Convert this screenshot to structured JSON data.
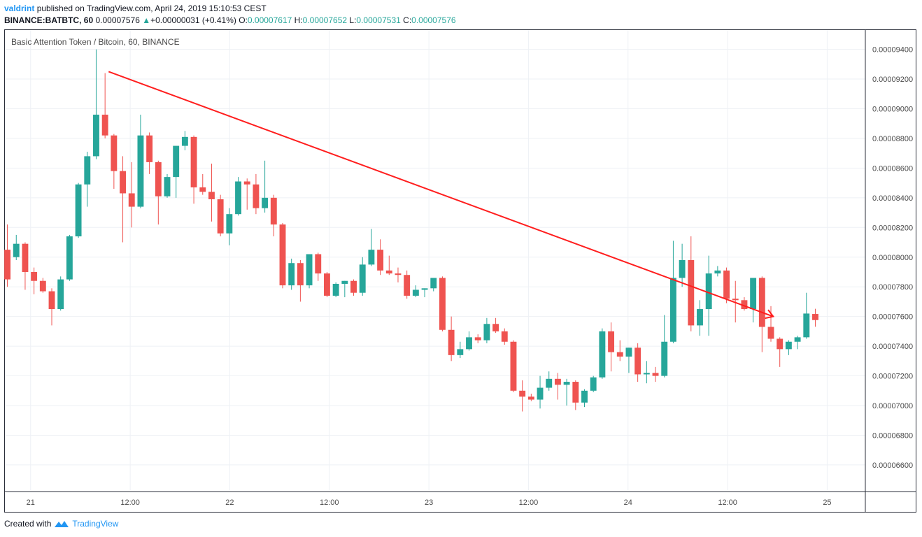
{
  "header": {
    "author": "valdrint",
    "published_text": "published on TradingView.com, April 24, 2019 15:10:53 CEST",
    "symbol": "BINANCE:BATBTC, 60",
    "last_price": "0.00007576",
    "change_arrow": "▲",
    "change": "+0.00000031 (+0.41%)",
    "o_label": "O:",
    "o_value": "0.00007617",
    "h_label": "H:",
    "h_value": "0.00007652",
    "l_label": "L:",
    "l_value": "0.00007531",
    "c_label": "C:",
    "c_value": "0.00007576"
  },
  "pane_title": "Basic Attention Token / Bitcoin, 60, BINANCE",
  "footer": {
    "created_with": "Created with",
    "brand": "TradingView"
  },
  "colors": {
    "up": "#26a69a",
    "down": "#ef5350",
    "trendline": "#ff1e1e",
    "grid": "#eef1f5",
    "axis_text": "#4a4a4a"
  },
  "chart_data": {
    "type": "candlestick",
    "timeframe": "60",
    "y_axis_ticks": [
      "0.00009400",
      "0.00009200",
      "0.00009000",
      "0.00008800",
      "0.00008600",
      "0.00008400",
      "0.00008200",
      "0.00008000",
      "0.00007800",
      "0.00007600",
      "0.00007400",
      "0.00007200",
      "0.00007000",
      "0.00006800",
      "0.00006600"
    ],
    "y_range": [
      6.43e-05,
      9.53e-05
    ],
    "x_axis_ticks": [
      {
        "label": "21",
        "t": 0
      },
      {
        "label": "12:00",
        "t": 12
      },
      {
        "label": "22",
        "t": 24
      },
      {
        "label": "12:00",
        "t": 36
      },
      {
        "label": "23",
        "t": 48
      },
      {
        "label": "12:00",
        "t": 60
      },
      {
        "label": "24",
        "t": 72
      },
      {
        "label": "12:00",
        "t": 84
      },
      {
        "label": "25",
        "t": 96
      }
    ],
    "x_range_hours": [
      -3.1,
      100.6
    ],
    "candle_start_hour": -2.8,
    "candle_step_hours": 1.07,
    "candles": [
      [
        8.05e-05,
        8.22e-05,
        7.8e-05,
        7.85e-05
      ],
      [
        8e-05,
        8.15e-05,
        7.98e-05,
        8.09e-05
      ],
      [
        8.09e-05,
        8.1e-05,
        7.78e-05,
        7.9e-05
      ],
      [
        7.9e-05,
        7.93e-05,
        7.75e-05,
        7.84e-05
      ],
      [
        7.84e-05,
        7.86e-05,
        7.76e-05,
        7.77e-05
      ],
      [
        7.77e-05,
        7.79e-05,
        7.54e-05,
        7.65e-05
      ],
      [
        7.65e-05,
        7.87e-05,
        7.64e-05,
        7.85e-05
      ],
      [
        7.85e-05,
        8.15e-05,
        7.84e-05,
        8.14e-05
      ],
      [
        8.14e-05,
        8.5e-05,
        8.13e-05,
        8.49e-05
      ],
      [
        8.49e-05,
        8.71e-05,
        8.34e-05,
        8.68e-05
      ],
      [
        8.68e-05,
        9.4e-05,
        8.66e-05,
        8.96e-05
      ],
      [
        8.96e-05,
        9.24e-05,
        8.8e-05,
        8.82e-05
      ],
      [
        8.82e-05,
        8.83e-05,
        8.46e-05,
        8.58e-05
      ],
      [
        8.58e-05,
        8.68e-05,
        8.1e-05,
        8.43e-05
      ],
      [
        8.43e-05,
        8.64e-05,
        8.2e-05,
        8.34e-05
      ],
      [
        8.34e-05,
        8.96e-05,
        8.33e-05,
        8.82e-05
      ],
      [
        8.82e-05,
        8.84e-05,
        8.56e-05,
        8.64e-05
      ],
      [
        8.64e-05,
        8.65e-05,
        8.22e-05,
        8.41e-05
      ],
      [
        8.41e-05,
        8.56e-05,
        8.4e-05,
        8.54e-05
      ],
      [
        8.54e-05,
        8.73e-05,
        8.4e-05,
        8.75e-05
      ],
      [
        8.75e-05,
        8.85e-05,
        8.72e-05,
        8.81e-05
      ],
      [
        8.81e-05,
        8.82e-05,
        8.36e-05,
        8.47e-05
      ],
      [
        8.47e-05,
        8.56e-05,
        8.42e-05,
        8.44e-05
      ],
      [
        8.44e-05,
        8.63e-05,
        8.24e-05,
        8.39e-05
      ],
      [
        8.39e-05,
        8.42e-05,
        8.14e-05,
        8.16e-05
      ],
      [
        8.16e-05,
        8.33e-05,
        8.08e-05,
        8.29e-05
      ],
      [
        8.29e-05,
        8.54e-05,
        8.28e-05,
        8.51e-05
      ],
      [
        8.51e-05,
        8.53e-05,
        8.32e-05,
        8.49e-05
      ],
      [
        8.49e-05,
        8.56e-05,
        8.29e-05,
        8.33e-05
      ],
      [
        8.33e-05,
        8.65e-05,
        8.3e-05,
        8.4e-05
      ],
      [
        8.4e-05,
        8.42e-05,
        8.14e-05,
        8.22e-05
      ],
      [
        8.22e-05,
        8.23e-05,
        7.79e-05,
        7.81e-05
      ],
      [
        7.81e-05,
        7.99e-05,
        7.78e-05,
        7.96e-05
      ],
      [
        7.96e-05,
        7.98e-05,
        7.7e-05,
        7.81e-05
      ],
      [
        7.81e-05,
        8.02e-05,
        7.79e-05,
        8.02e-05
      ],
      [
        8.02e-05,
        8.03e-05,
        7.84e-05,
        7.89e-05
      ],
      [
        7.89e-05,
        7.9e-05,
        7.73e-05,
        7.74e-05
      ],
      [
        7.74e-05,
        7.83e-05,
        7.73e-05,
        7.82e-05
      ],
      [
        7.82e-05,
        7.84e-05,
        7.73e-05,
        7.84e-05
      ],
      [
        7.84e-05,
        7.85e-05,
        7.74e-05,
        7.76e-05
      ],
      [
        7.76e-05,
        8e-05,
        7.74e-05,
        7.95e-05
      ],
      [
        7.95e-05,
        8.19e-05,
        7.94e-05,
        8.05e-05
      ],
      [
        8.05e-05,
        8.12e-05,
        7.88e-05,
        7.91e-05
      ],
      [
        7.91e-05,
        8.01e-05,
        7.88e-05,
        7.89e-05
      ],
      [
        7.89e-05,
        7.93e-05,
        7.83e-05,
        7.88e-05
      ],
      [
        7.88e-05,
        7.91e-05,
        7.72e-05,
        7.74e-05
      ],
      [
        7.74e-05,
        7.81e-05,
        7.73e-05,
        7.78e-05
      ],
      [
        7.78e-05,
        7.79e-05,
        7.73e-05,
        7.79e-05
      ],
      [
        7.79e-05,
        7.85e-05,
        7.77e-05,
        7.86e-05
      ],
      [
        7.86e-05,
        7.87e-05,
        7.5e-05,
        7.51e-05
      ],
      [
        7.51e-05,
        7.6e-05,
        7.3e-05,
        7.34e-05
      ],
      [
        7.34e-05,
        7.43e-05,
        7.32e-05,
        7.38e-05
      ],
      [
        7.38e-05,
        7.5e-05,
        7.37e-05,
        7.46e-05
      ],
      [
        7.46e-05,
        7.48e-05,
        7.42e-05,
        7.44e-05
      ],
      [
        7.44e-05,
        7.59e-05,
        7.42e-05,
        7.55e-05
      ],
      [
        7.55e-05,
        7.59e-05,
        7.49e-05,
        7.5e-05
      ],
      [
        7.5e-05,
        7.52e-05,
        7.41e-05,
        7.43e-05
      ],
      [
        7.43e-05,
        7.44e-05,
        7.09e-05,
        7.1e-05
      ],
      [
        7.1e-05,
        7.17e-05,
        6.96e-05,
        7.06e-05
      ],
      [
        7.06e-05,
        7.08e-05,
        7.03e-05,
        7.04e-05
      ],
      [
        7.04e-05,
        7.2e-05,
        6.98e-05,
        7.12e-05
      ],
      [
        7.12e-05,
        7.23e-05,
        7.1e-05,
        7.18e-05
      ],
      [
        7.18e-05,
        7.22e-05,
        7.04e-05,
        7.14e-05
      ],
      [
        7.14e-05,
        7.18e-05,
        7e-05,
        7.16e-05
      ],
      [
        7.16e-05,
        7.17e-05,
        6.97e-05,
        7.02e-05
      ],
      [
        7.02e-05,
        7.11e-05,
        6.99e-05,
        7.1e-05
      ],
      [
        7.1e-05,
        7.2e-05,
        7.09e-05,
        7.19e-05
      ],
      [
        7.19e-05,
        7.52e-05,
        7.18e-05,
        7.5e-05
      ],
      [
        7.5e-05,
        7.56e-05,
        7.23e-05,
        7.36e-05
      ],
      [
        7.36e-05,
        7.44e-05,
        7.3e-05,
        7.33e-05
      ],
      [
        7.33e-05,
        7.39e-05,
        7.22e-05,
        7.39e-05
      ],
      [
        7.39e-05,
        7.42e-05,
        7.16e-05,
        7.21e-05
      ],
      [
        7.21e-05,
        7.3e-05,
        7.15e-05,
        7.22e-05
      ],
      [
        7.22e-05,
        7.26e-05,
        7.16e-05,
        7.2e-05
      ],
      [
        7.2e-05,
        7.61e-05,
        7.19e-05,
        7.43e-05
      ],
      [
        7.43e-05,
        8.11e-05,
        7.42e-05,
        7.86e-05
      ],
      [
        7.86e-05,
        8.09e-05,
        7.8e-05,
        7.98e-05
      ],
      [
        7.98e-05,
        8.14e-05,
        7.5e-05,
        7.54e-05
      ],
      [
        7.54e-05,
        7.71e-05,
        7.47e-05,
        7.65e-05
      ],
      [
        7.65e-05,
        8.01e-05,
        7.47e-05,
        7.89e-05
      ],
      [
        7.89e-05,
        7.94e-05,
        7.87e-05,
        7.91e-05
      ],
      [
        7.91e-05,
        7.93e-05,
        7.69e-05,
        7.72e-05
      ],
      [
        7.72e-05,
        7.84e-05,
        7.56e-05,
        7.71e-05
      ],
      [
        7.71e-05,
        7.73e-05,
        7.64e-05,
        7.65e-05
      ],
      [
        7.65e-05,
        7.86e-05,
        7.56e-05,
        7.86e-05
      ],
      [
        7.86e-05,
        7.87e-05,
        7.36e-05,
        7.53e-05
      ],
      [
        7.53e-05,
        7.67e-05,
        7.43e-05,
        7.45e-05
      ],
      [
        7.45e-05,
        7.46e-05,
        7.26e-05,
        7.38e-05
      ],
      [
        7.38e-05,
        7.44e-05,
        7.34e-05,
        7.43e-05
      ],
      [
        7.43e-05,
        7.47e-05,
        7.38e-05,
        7.46e-05
      ],
      [
        7.46e-05,
        7.76e-05,
        7.45e-05,
        7.62e-05
      ],
      [
        7.617e-05,
        7.652e-05,
        7.531e-05,
        7.576e-05
      ]
    ],
    "trendline": {
      "start": {
        "t": 9.4,
        "price": 9.25e-05
      },
      "end": {
        "t": 89.5,
        "price": 7.6e-05
      },
      "arrow": true
    }
  }
}
